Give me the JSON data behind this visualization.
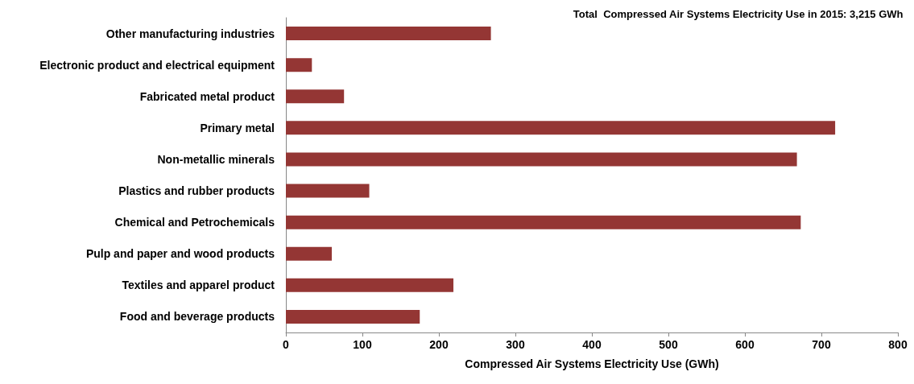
{
  "chart_data": {
    "type": "bar",
    "orientation": "horizontal",
    "title": "Total  Compressed Air Systems Electricity Use in 2015: 3,215 GWh",
    "xlabel": "Compressed Air Systems Electricity Use (GWh)",
    "categories": [
      "Other manufacturing industries",
      "Electronic product and electrical equipment",
      "Fabricated metal product",
      "Primary metal",
      "Non-metallic minerals",
      "Plastics and rubber products",
      "Chemical and Petrochemicals",
      "Pulp and paper and wood products",
      "Textiles and apparel product",
      "Food and beverage products"
    ],
    "values": [
      268,
      34,
      76,
      718,
      668,
      109,
      673,
      60,
      219,
      175
    ],
    "color": "#943634",
    "xlim": [
      0,
      800
    ],
    "xticks": [
      0,
      100,
      200,
      300,
      400,
      500,
      600,
      700,
      800
    ],
    "grid": false
  }
}
